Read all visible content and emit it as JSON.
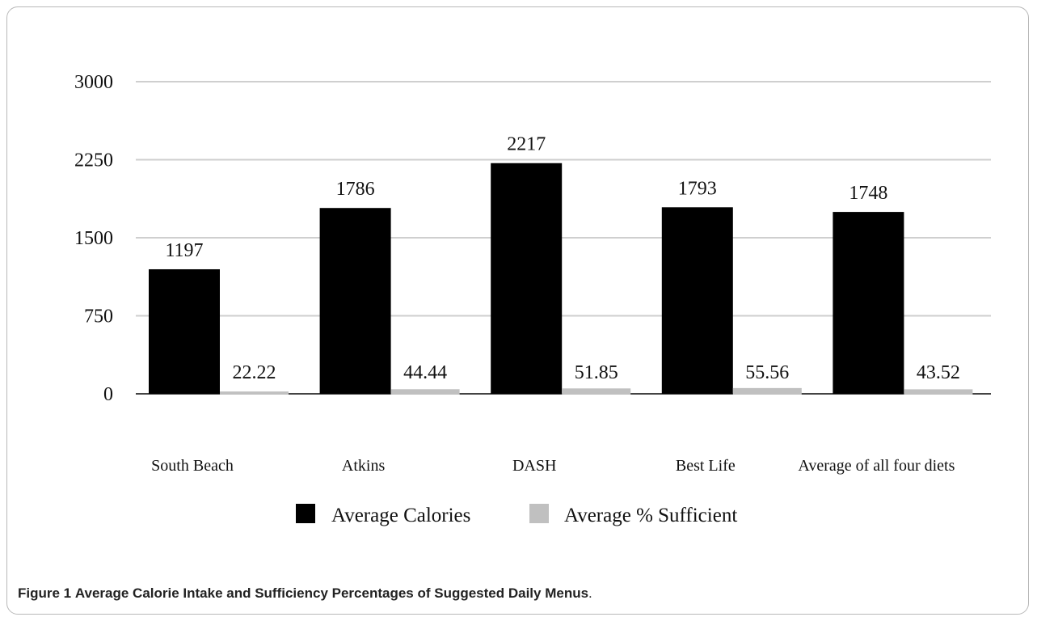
{
  "caption": {
    "figure_label": "Figure 1",
    "title": "Average Calorie Intake and Sufficiency Percentages of Suggested Daily Menus",
    "end": "."
  },
  "chart_data": {
    "type": "bar",
    "categories": [
      "South Beach",
      "Atkins",
      "DASH",
      "Best Life",
      "Average of all four diets"
    ],
    "series": [
      {
        "name": "Average Calories",
        "values": [
          1197,
          1786,
          2217,
          1793,
          1748
        ],
        "labels": [
          "1197",
          "1786",
          "2217",
          "1793",
          "1748"
        ],
        "color": "#000000"
      },
      {
        "name": "Average % Sufficient",
        "values": [
          22.22,
          44.44,
          51.85,
          55.56,
          43.52
        ],
        "labels": [
          "22.22",
          "44.44",
          "51.85",
          "55.56",
          "43.52"
        ],
        "color": "#c0c0c0"
      }
    ],
    "ylim": [
      0,
      3000
    ],
    "yticks": [
      0,
      750,
      1500,
      2250,
      3000
    ],
    "ytick_labels": [
      "0",
      "750",
      "1500",
      "2250",
      "3000"
    ],
    "grid": true,
    "legend": "bottom"
  }
}
